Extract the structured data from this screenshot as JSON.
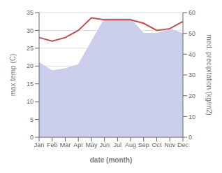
{
  "chart_data": {
    "type": "line",
    "xlabel": "date (month)",
    "ylabel": "max temp (C)",
    "y2label": "med. precipitation (kg/m2)",
    "categories": [
      "Jan",
      "Feb",
      "Mar",
      "Apr",
      "May",
      "Jun",
      "Jul",
      "Aug",
      "Sep",
      "Oct",
      "Nov",
      "Dec"
    ],
    "series": [
      {
        "type": "area",
        "axis": "y2",
        "color": "#c5cae9",
        "values": [
          36,
          32,
          33,
          35,
          46,
          57,
          57,
          57,
          50,
          50,
          52,
          50
        ]
      },
      {
        "type": "line",
        "color": "#c0504d",
        "values": [
          28,
          27,
          28,
          30,
          33.5,
          33,
          33,
          33,
          32,
          30,
          30.5,
          32.5
        ]
      }
    ],
    "ylim": [
      0,
      35
    ],
    "yticks": [
      0,
      5,
      10,
      15,
      20,
      25,
      30,
      35
    ],
    "y2lim": [
      0,
      60
    ],
    "y2ticks": [
      0,
      10,
      20,
      30,
      40,
      50,
      60
    ],
    "grid": true
  }
}
